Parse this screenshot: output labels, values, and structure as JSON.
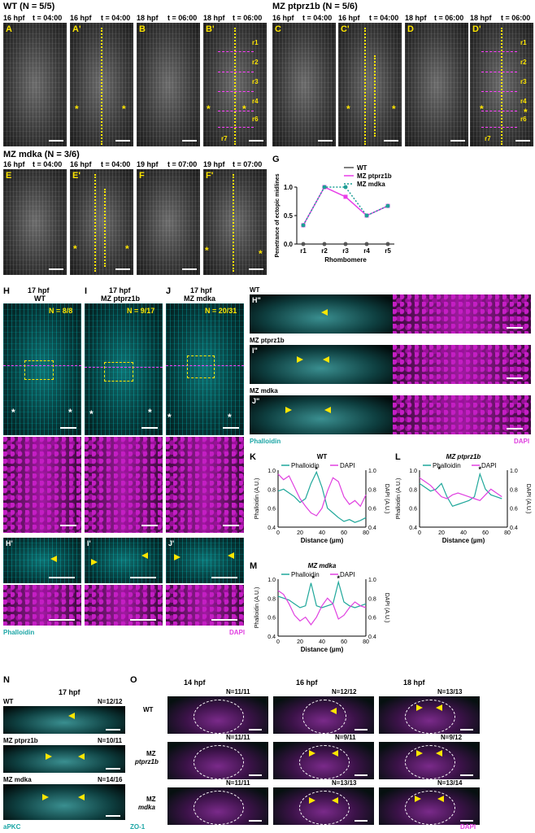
{
  "rows": {
    "row1_left": "WT (N = 5/5)",
    "row1_right": "MZ ptprz1b (N = 5/6)",
    "row2_left": "MZ mdka (N = 3/6)"
  },
  "time_headers": {
    "a_stage": "16 hpf",
    "a_time": "t = 04:00",
    "b_stage": "18 hpf",
    "b_time": "t = 06:00",
    "f_stage": "19 hpf",
    "f_time": "t = 07:00"
  },
  "panel_letters": {
    "A": "A",
    "Ap": "A'",
    "B": "B",
    "Bp": "B'",
    "C": "C",
    "Cp": "C'",
    "D": "D",
    "Dp": "D'",
    "E": "E",
    "Ep": "E'",
    "F": "F",
    "Fp": "F'",
    "G": "G",
    "H": "H",
    "I": "I",
    "J": "J",
    "Hp": "H'",
    "Ip": "I'",
    "Jp": "J'",
    "Hpp": "H\"",
    "Ipp": "I\"",
    "Jpp": "J\"",
    "K": "K",
    "L": "L",
    "M": "M",
    "N": "N",
    "O": "O"
  },
  "rhombomere_tags": [
    "r1",
    "r2",
    "r3",
    "r4",
    "r5",
    "r6",
    "r7"
  ],
  "star": "*",
  "panel_h": {
    "stage": "17 hpf",
    "genotype": "WT",
    "n": "N = 8/8"
  },
  "panel_i": {
    "stage": "17 hpf",
    "genotype": "MZ ptprz1b",
    "n": "N = 9/17"
  },
  "panel_j": {
    "stage": "17 hpf",
    "genotype": "MZ mdka",
    "n": "N = 20/31"
  },
  "channels": {
    "phalloidin": "Phalloidin",
    "dapi": "DAPI",
    "apkc": "aPKC",
    "zo1": "ZO-1"
  },
  "xsections": {
    "wt": "WT",
    "ptprz1b": "MZ ptprz1b",
    "mdka": "MZ mdka"
  },
  "panel_n": {
    "stage": "17 hpf",
    "rows": [
      {
        "label": "WT",
        "n": "N=12/12"
      },
      {
        "label": "MZ ptprz1b",
        "n": "N=10/11"
      },
      {
        "label": "MZ mdka",
        "n": "N=14/16"
      }
    ]
  },
  "panel_o": {
    "stages": [
      "14 hpf",
      "16 hpf",
      "18 hpf"
    ],
    "row_labels": [
      "WT",
      "MZ\nptprz1b",
      "MZ\nmdka"
    ],
    "row_labels_line1": [
      "WT",
      "MZ",
      "MZ"
    ],
    "row_labels_line2": [
      "",
      "ptprz1b",
      "mdka"
    ],
    "n": [
      [
        "N=11/11",
        "N=12/12",
        "N=13/13"
      ],
      [
        "N=11/11",
        "N=9/11",
        "N=9/12"
      ],
      [
        "N=11/11",
        "N=13/13",
        "N=13/14"
      ]
    ]
  },
  "colors": {
    "midline": "#ffe600",
    "rhombomere_line": "#ff3cff",
    "phalloidin": "#1fa79a",
    "dapi": "#e040e0",
    "wt": "#555555",
    "ptprz1b": "#e83ee8",
    "mdka": "#1f9e96"
  },
  "chart_data": [
    {
      "type": "line",
      "panel": "G",
      "categories": [
        "r1",
        "r2",
        "r3",
        "r4",
        "r5"
      ],
      "xlabel": "Rhombomere",
      "ylabel": "Penetrance of ectopic midlines",
      "ylim": [
        0,
        1.0
      ],
      "yticks": [
        "0.0",
        "0.5",
        "1.0"
      ],
      "legend_position": "top-right",
      "series": [
        {
          "name": "WT",
          "values": [
            0,
            0,
            0,
            0,
            0
          ]
        },
        {
          "name": "MZ ptprz1b",
          "values": [
            0.33,
            1.0,
            0.83,
            0.5,
            0.67
          ]
        },
        {
          "name": "MZ mdka",
          "values": [
            0.33,
            1.0,
            1.0,
            0.5,
            0.67
          ]
        }
      ]
    },
    {
      "type": "line",
      "panel": "K",
      "title": "WT",
      "xlabel": "Distance (µm)",
      "ylabel": "Phalloidin (A.U.)",
      "y2label": "DAPI (A.U.)",
      "xlim": [
        0,
        80
      ],
      "ylim": [
        0.4,
        1.0
      ],
      "y2lim": [
        0.4,
        1.0
      ],
      "xticks": [
        "0",
        "20",
        "40",
        "60",
        "80"
      ],
      "yticks": [
        "0.4",
        "0.6",
        "0.8",
        "1.0"
      ],
      "y2ticks": [
        "0.4",
        "0.6",
        "0.8",
        "1.0"
      ],
      "peak_marks": [
        {
          "x": 35,
          "label": "*"
        }
      ],
      "series": [
        {
          "name": "Phalloidin",
          "x": [
            0,
            5,
            10,
            15,
            20,
            25,
            30,
            35,
            40,
            45,
            50,
            55,
            60,
            65,
            70,
            75,
            80
          ],
          "values": [
            0.78,
            0.8,
            0.76,
            0.72,
            0.66,
            0.7,
            0.86,
            0.98,
            0.82,
            0.6,
            0.55,
            0.5,
            0.46,
            0.48,
            0.45,
            0.47,
            0.5
          ]
        },
        {
          "name": "DAPI",
          "x": [
            0,
            5,
            10,
            15,
            20,
            25,
            30,
            35,
            40,
            45,
            50,
            55,
            60,
            65,
            70,
            75,
            80
          ],
          "values": [
            0.96,
            0.9,
            0.94,
            0.82,
            0.7,
            0.62,
            0.55,
            0.52,
            0.6,
            0.78,
            0.92,
            0.88,
            0.72,
            0.64,
            0.68,
            0.62,
            0.74
          ]
        }
      ]
    },
    {
      "type": "line",
      "panel": "L",
      "title": "MZ ptprz1b",
      "xlabel": "Distance (µm)",
      "ylabel": "Phalloidin (A.U.)",
      "y2label": "DAPI (A.U.)",
      "xlim": [
        0,
        80
      ],
      "ylim": [
        0.4,
        1.0
      ],
      "y2lim": [
        0.4,
        1.0
      ],
      "xticks": [
        "0",
        "20",
        "40",
        "60",
        "80"
      ],
      "yticks": [
        "0.4",
        "0.6",
        "0.8",
        "1.0"
      ],
      "y2ticks": [
        "0.4",
        "0.6",
        "0.8",
        "1.0"
      ],
      "peak_marks": [
        {
          "x": 18,
          "label": "*"
        },
        {
          "x": 55,
          "label": "*"
        }
      ],
      "series": [
        {
          "name": "Phalloidin",
          "x": [
            0,
            5,
            10,
            15,
            20,
            25,
            30,
            35,
            40,
            45,
            50,
            55,
            60,
            65,
            70,
            75
          ],
          "values": [
            0.86,
            0.82,
            0.78,
            0.8,
            0.86,
            0.72,
            0.62,
            0.64,
            0.66,
            0.68,
            0.72,
            0.96,
            0.8,
            0.74,
            0.72,
            0.7
          ]
        },
        {
          "name": "DAPI",
          "x": [
            0,
            5,
            10,
            15,
            20,
            25,
            30,
            35,
            40,
            45,
            50,
            55,
            60,
            65,
            70,
            75
          ],
          "values": [
            0.92,
            0.88,
            0.84,
            0.78,
            0.72,
            0.7,
            0.74,
            0.76,
            0.74,
            0.72,
            0.7,
            0.68,
            0.74,
            0.8,
            0.76,
            0.72
          ]
        }
      ]
    },
    {
      "type": "line",
      "panel": "M",
      "title": "MZ mdka",
      "xlabel": "Distance (µm)",
      "ylabel": "Phalloidin (A.U.)",
      "y2label": "DAPI (A.U.)",
      "xlim": [
        0,
        80
      ],
      "ylim": [
        0.4,
        1.0
      ],
      "y2lim": [
        0.4,
        1.0
      ],
      "xticks": [
        "0",
        "20",
        "40",
        "60",
        "80"
      ],
      "yticks": [
        "0.4",
        "0.6",
        "0.8",
        "1.0"
      ],
      "y2ticks": [
        "0.4",
        "0.6",
        "0.8",
        "1.0"
      ],
      "peak_marks": [
        {
          "x": 32,
          "label": "*"
        },
        {
          "x": 55,
          "label": "*"
        }
      ],
      "series": [
        {
          "name": "Phalloidin",
          "x": [
            0,
            5,
            10,
            15,
            20,
            25,
            30,
            35,
            40,
            45,
            50,
            55,
            60,
            65,
            70,
            75,
            80
          ],
          "values": [
            0.82,
            0.8,
            0.78,
            0.74,
            0.7,
            0.72,
            0.96,
            0.72,
            0.7,
            0.72,
            0.74,
            0.97,
            0.76,
            0.72,
            0.7,
            0.72,
            0.74
          ]
        },
        {
          "name": "DAPI",
          "x": [
            0,
            5,
            10,
            15,
            20,
            25,
            30,
            35,
            40,
            45,
            50,
            55,
            60,
            65,
            70,
            75,
            80
          ],
          "values": [
            0.88,
            0.84,
            0.74,
            0.62,
            0.56,
            0.6,
            0.52,
            0.6,
            0.72,
            0.8,
            0.74,
            0.58,
            0.62,
            0.7,
            0.76,
            0.72,
            0.7
          ]
        }
      ]
    }
  ]
}
